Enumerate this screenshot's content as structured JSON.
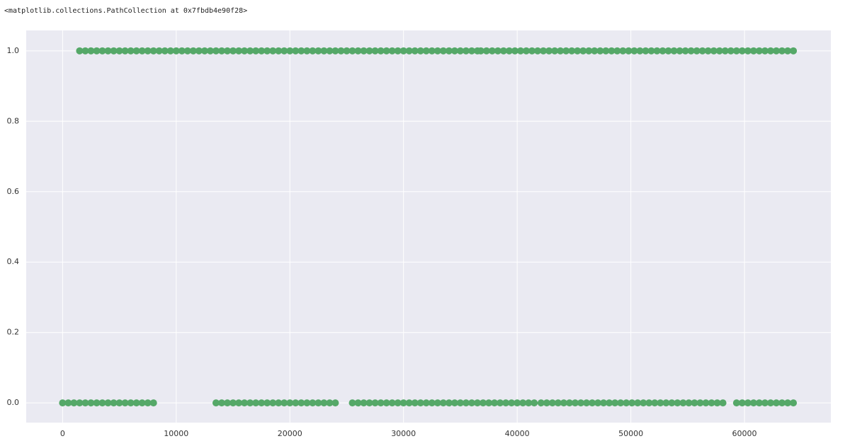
{
  "output_text": "<matplotlib.collections.PathCollection at 0x7fbdb4e90f28>",
  "chart_data": {
    "type": "scatter",
    "grid": true,
    "background": "#eaeaf2",
    "xlim": [
      -3200,
      67600
    ],
    "ylim": [
      -0.056,
      1.058
    ],
    "xticks": [
      0,
      10000,
      20000,
      30000,
      40000,
      50000,
      60000
    ],
    "yticks": [
      {
        "value": 0,
        "label": "0.0"
      },
      0.2,
      0.4,
      0.6,
      0.8,
      {
        "value": 1,
        "label": "1.0"
      }
    ],
    "series": [
      {
        "color": "#55a868",
        "x": [
          1500,
          2000,
          2500,
          3000,
          3500,
          4000,
          4500,
          5000,
          5500,
          6000,
          6500,
          7000,
          7500,
          8000,
          8500,
          9000,
          9500,
          10000,
          10500,
          11000,
          11500,
          12000,
          12500,
          13000,
          13500,
          14000,
          14500,
          15000,
          15500,
          16000,
          16500,
          17000,
          17500,
          18000,
          18500,
          19000,
          19500,
          20000,
          20500,
          21000,
          21500,
          22000,
          22500,
          23000,
          23500,
          24000,
          24500,
          25000,
          25500,
          26000,
          26500,
          27000,
          27500,
          28000,
          28500,
          29000,
          29500,
          30000,
          30500,
          31000,
          31500,
          32000,
          32500,
          33000,
          33500,
          34000,
          34500,
          35000,
          35500,
          36000,
          36500,
          36800,
          37300,
          37800,
          38300,
          38800,
          39300,
          39800,
          40300,
          40800,
          41300,
          41800,
          42300,
          42800,
          43300,
          43800,
          44300,
          44800,
          45300,
          45800,
          46300,
          46800,
          47300,
          47800,
          48300,
          48800,
          49300,
          49800,
          50300,
          50800,
          51300,
          51800,
          52300,
          52800,
          53300,
          53800,
          54300,
          54800,
          55300,
          55800,
          56300,
          56800,
          57300,
          57800,
          58300,
          58800,
          59300,
          59800,
          60300,
          60800,
          61300,
          61800,
          62300,
          62800,
          63300,
          63800,
          64300
        ],
        "values": [
          1,
          1,
          1,
          1,
          1,
          1,
          1,
          1,
          1,
          1,
          1,
          1,
          1,
          1,
          1,
          1,
          1,
          1,
          1,
          1,
          1,
          1,
          1,
          1,
          1,
          1,
          1,
          1,
          1,
          1,
          1,
          1,
          1,
          1,
          1,
          1,
          1,
          1,
          1,
          1,
          1,
          1,
          1,
          1,
          1,
          1,
          1,
          1,
          1,
          1,
          1,
          1,
          1,
          1,
          1,
          1,
          1,
          1,
          1,
          1,
          1,
          1,
          1,
          1,
          1,
          1,
          1,
          1,
          1,
          1,
          1,
          1,
          1,
          1,
          1,
          1,
          1,
          1,
          1,
          1,
          1,
          1,
          1,
          1,
          1,
          1,
          1,
          1,
          1,
          1,
          1,
          1,
          1,
          1,
          1,
          1,
          1,
          1,
          1,
          1,
          1,
          1,
          1,
          1,
          1,
          1,
          1,
          1,
          1,
          1,
          1,
          1,
          1,
          1,
          1,
          1,
          1,
          1,
          1,
          1,
          1,
          1,
          1,
          1,
          1,
          1,
          1
        ]
      },
      {
        "color": "#55a868",
        "x": [
          0,
          500,
          1000,
          1500,
          2000,
          2500,
          3000,
          3500,
          4000,
          4500,
          5000,
          5500,
          6000,
          6500,
          7000,
          7500,
          8000,
          13500,
          14000,
          14500,
          15000,
          15500,
          16000,
          16500,
          17000,
          17500,
          18000,
          18500,
          19000,
          19500,
          20000,
          20500,
          21000,
          21500,
          22000,
          22500,
          23000,
          23500,
          24000,
          25500,
          26000,
          26500,
          27000,
          27500,
          28000,
          28500,
          29000,
          29500,
          30000,
          30500,
          31000,
          31500,
          32000,
          32500,
          33000,
          33500,
          34000,
          34500,
          35000,
          35500,
          36000,
          36500,
          37000,
          37500,
          38000,
          38500,
          39000,
          39500,
          40000,
          40500,
          41000,
          41500,
          42100,
          42600,
          43100,
          43600,
          44100,
          44600,
          45100,
          45600,
          46100,
          46600,
          47100,
          47600,
          48100,
          48600,
          49100,
          49600,
          50100,
          50600,
          51100,
          51600,
          52100,
          52600,
          53100,
          53600,
          54100,
          54600,
          55100,
          55600,
          56100,
          56600,
          57100,
          57600,
          58100,
          59300,
          59800,
          60300,
          60800,
          61300,
          61800,
          62300,
          62800,
          63300,
          63800,
          64300
        ],
        "values": [
          0,
          0,
          0,
          0,
          0,
          0,
          0,
          0,
          0,
          0,
          0,
          0,
          0,
          0,
          0,
          0,
          0,
          0,
          0,
          0,
          0,
          0,
          0,
          0,
          0,
          0,
          0,
          0,
          0,
          0,
          0,
          0,
          0,
          0,
          0,
          0,
          0,
          0,
          0,
          0,
          0,
          0,
          0,
          0,
          0,
          0,
          0,
          0,
          0,
          0,
          0,
          0,
          0,
          0,
          0,
          0,
          0,
          0,
          0,
          0,
          0,
          0,
          0,
          0,
          0,
          0,
          0,
          0,
          0,
          0,
          0,
          0,
          0,
          0,
          0,
          0,
          0,
          0,
          0,
          0,
          0,
          0,
          0,
          0,
          0,
          0,
          0,
          0,
          0,
          0,
          0,
          0,
          0,
          0,
          0,
          0,
          0,
          0,
          0,
          0,
          0,
          0,
          0,
          0,
          0,
          0,
          0,
          0,
          0,
          0,
          0,
          0,
          0,
          0,
          0,
          0
        ]
      }
    ]
  }
}
